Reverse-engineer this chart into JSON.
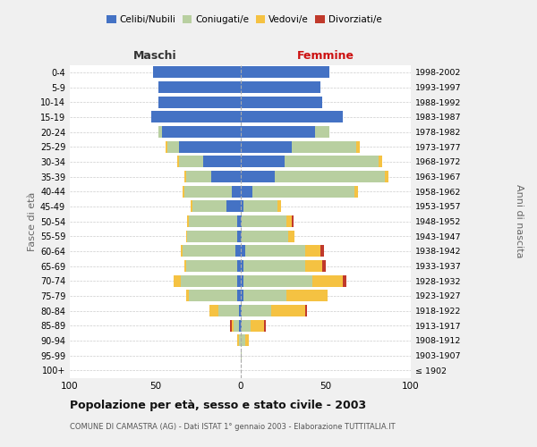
{
  "age_groups": [
    "100+",
    "95-99",
    "90-94",
    "85-89",
    "80-84",
    "75-79",
    "70-74",
    "65-69",
    "60-64",
    "55-59",
    "50-54",
    "45-49",
    "40-44",
    "35-39",
    "30-34",
    "25-29",
    "20-24",
    "15-19",
    "10-14",
    "5-9",
    "0-4"
  ],
  "anni_nascita": [
    "≤ 1902",
    "1903-1907",
    "1908-1912",
    "1913-1917",
    "1918-1922",
    "1923-1927",
    "1928-1932",
    "1933-1937",
    "1938-1942",
    "1943-1947",
    "1948-1952",
    "1953-1957",
    "1958-1962",
    "1963-1967",
    "1968-1972",
    "1973-1977",
    "1978-1982",
    "1983-1987",
    "1988-1992",
    "1993-1997",
    "1998-2002"
  ],
  "maschi_celibi": [
    0,
    0,
    0,
    1,
    1,
    2,
    2,
    2,
    3,
    2,
    2,
    8,
    5,
    17,
    22,
    36,
    46,
    52,
    48,
    48,
    51
  ],
  "maschi_coniugati": [
    0,
    0,
    1,
    3,
    12,
    28,
    33,
    30,
    31,
    29,
    28,
    20,
    28,
    15,
    14,
    7,
    2,
    0,
    0,
    0,
    0
  ],
  "maschi_vedovi": [
    0,
    0,
    1,
    1,
    5,
    2,
    4,
    1,
    1,
    1,
    1,
    1,
    1,
    1,
    1,
    1,
    0,
    0,
    0,
    0,
    0
  ],
  "maschi_divorziati": [
    0,
    0,
    0,
    1,
    0,
    0,
    0,
    0,
    0,
    0,
    0,
    0,
    0,
    0,
    0,
    0,
    0,
    0,
    0,
    0,
    0
  ],
  "femmine_nubili": [
    0,
    0,
    0,
    1,
    1,
    2,
    2,
    2,
    3,
    1,
    1,
    2,
    7,
    20,
    26,
    30,
    44,
    60,
    48,
    47,
    52
  ],
  "femmine_coniugate": [
    0,
    1,
    3,
    5,
    17,
    25,
    40,
    36,
    35,
    27,
    26,
    20,
    60,
    65,
    55,
    38,
    8,
    0,
    0,
    0,
    0
  ],
  "femmine_vedove": [
    0,
    0,
    2,
    8,
    20,
    24,
    18,
    10,
    9,
    4,
    3,
    2,
    2,
    2,
    2,
    2,
    0,
    0,
    0,
    0,
    0
  ],
  "femmine_divorziate": [
    0,
    0,
    0,
    1,
    1,
    0,
    2,
    2,
    2,
    0,
    1,
    0,
    0,
    0,
    0,
    0,
    0,
    0,
    0,
    0,
    0
  ],
  "color_celibi": "#4472c4",
  "color_coniugati": "#b8cfa0",
  "color_vedovi": "#f5c242",
  "color_divorziati": "#c0392b",
  "title": "Popolazione per età, sesso e stato civile - 2003",
  "subtitle": "COMUNE DI CAMASTRA (AG) - Dati ISTAT 1° gennaio 2003 - Elaborazione TUTTITALIA.IT",
  "label_maschi": "Maschi",
  "label_femmine": "Femmine",
  "ylabel_left": "Fasce di età",
  "ylabel_right": "Anni di nascita",
  "xlim": 100,
  "background_color": "#f0f0f0",
  "plot_bg": "#ffffff"
}
